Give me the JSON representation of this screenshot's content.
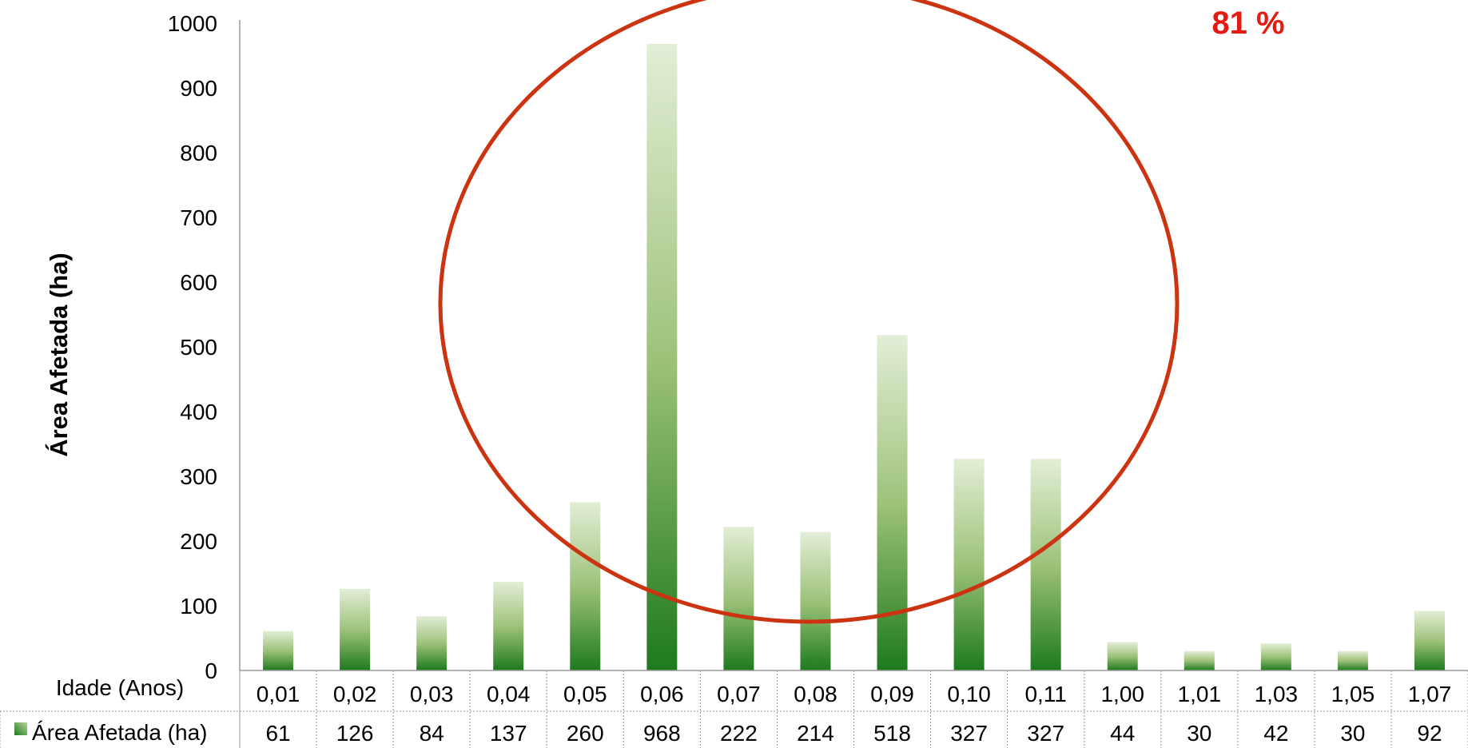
{
  "chart_data": {
    "type": "bar",
    "ylabel": "Área Afetada (ha)",
    "ylim": [
      0,
      1000
    ],
    "yticks": [
      0,
      100,
      200,
      300,
      400,
      500,
      600,
      700,
      800,
      900,
      1000
    ],
    "grid": false,
    "categories": [
      "0,01",
      "0,02",
      "0,03",
      "0,04",
      "0,05",
      "0,06",
      "0,07",
      "0,08",
      "0,09",
      "0,10",
      "0,11",
      "1,00",
      "1,01",
      "1,03",
      "1,05",
      "1,07"
    ],
    "series": [
      {
        "name": "Área Afetada (ha)",
        "values": [
          61,
          126,
          84,
          137,
          260,
          968,
          222,
          214,
          518,
          327,
          327,
          44,
          30,
          42,
          30,
          92
        ]
      }
    ],
    "data_table": {
      "category_header": "Idade (Anos)",
      "series_label": "Área Afetada (ha)"
    },
    "annotations": [
      {
        "text": "81 %",
        "color": "#e41b13"
      }
    ],
    "colors": {
      "bar_dark": "#1e7a1e",
      "bar_mid": "#9ec27a",
      "bar_light": "#e2eed6",
      "ellipse": "#cc3311"
    }
  }
}
